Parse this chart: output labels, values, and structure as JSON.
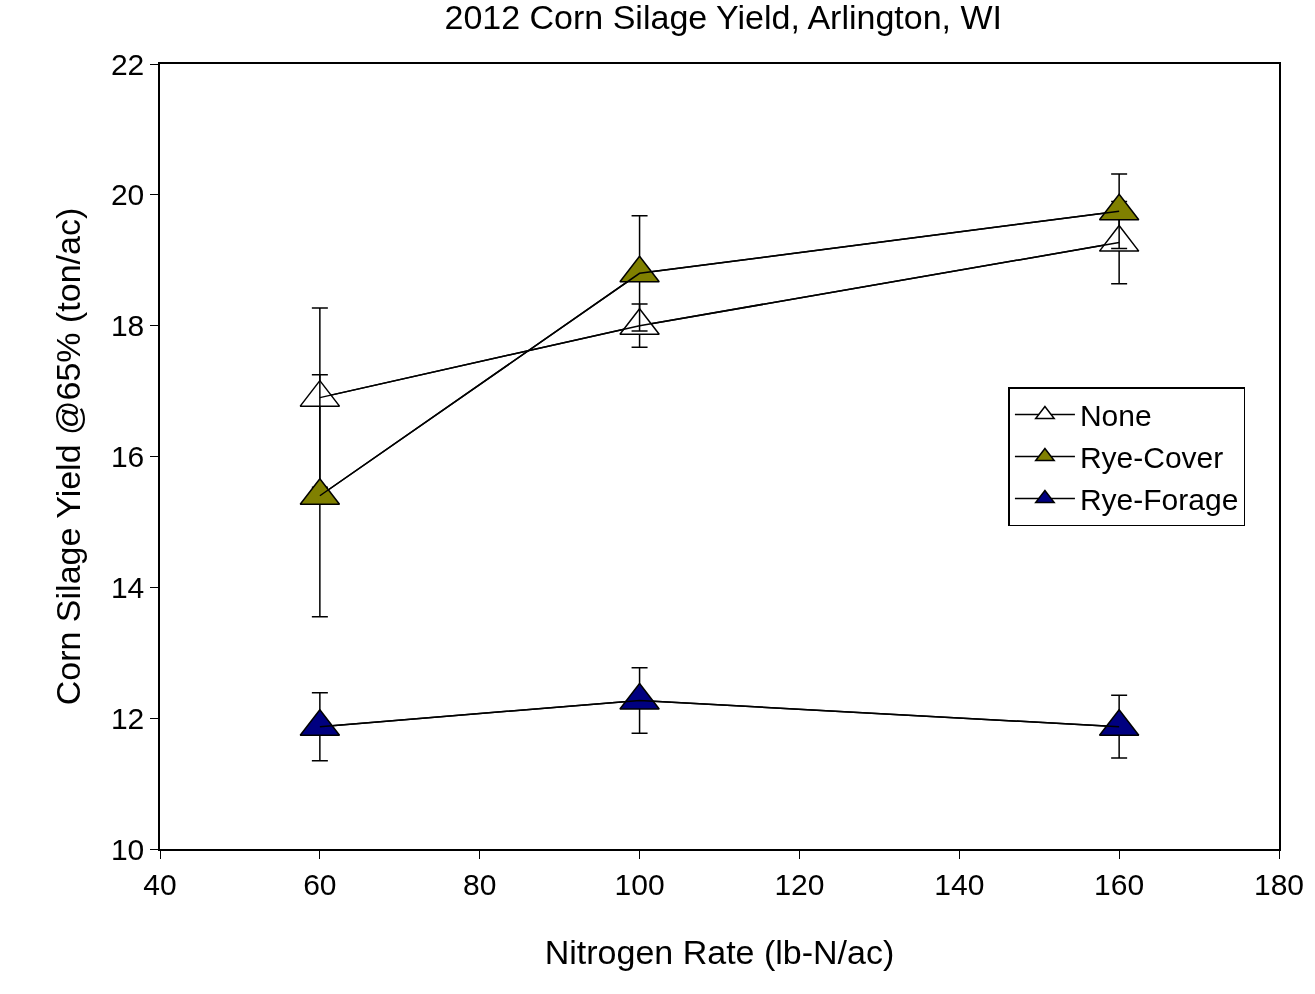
{
  "chart_data": {
    "type": "line",
    "title": "2012 Corn Silage Yield, Arlington, WI",
    "xlabel": "Nitrogen Rate (lb-N/ac)",
    "ylabel": "Corn Silage Yield @65% (ton/ac)",
    "x": [
      60,
      100,
      160
    ],
    "series": [
      {
        "name": "None",
        "color": "#ffffff",
        "values": [
          16.9,
          18.0,
          19.27
        ],
        "errors": [
          1.37,
          0.33,
          0.63
        ]
      },
      {
        "name": "Rye-Cover",
        "color": "#808000",
        "values": [
          15.4,
          18.8,
          19.75
        ],
        "errors": [
          1.85,
          0.88,
          0.57
        ]
      },
      {
        "name": "Rye-Forage",
        "color": "#000080",
        "values": [
          11.87,
          12.27,
          11.87
        ],
        "errors": [
          0.52,
          0.5,
          0.48
        ]
      }
    ],
    "xlim": [
      40,
      180
    ],
    "xticks": [
      40,
      60,
      80,
      100,
      120,
      140,
      160,
      180
    ],
    "ylim": [
      10,
      22
    ],
    "yticks": [
      10,
      12,
      14,
      16,
      18,
      20,
      22
    ],
    "legend": "right",
    "marker": "triangle",
    "line_style": "solid"
  }
}
